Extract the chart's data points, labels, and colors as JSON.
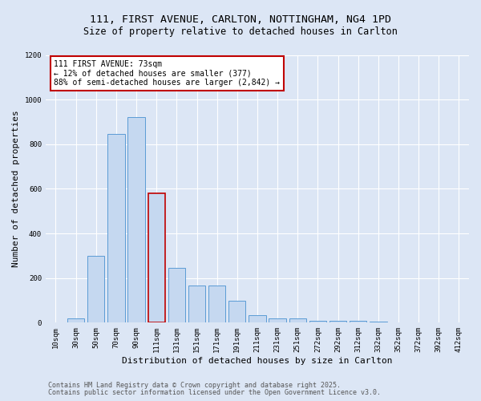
{
  "title_line1": "111, FIRST AVENUE, CARLTON, NOTTINGHAM, NG4 1PD",
  "title_line2": "Size of property relative to detached houses in Carlton",
  "xlabel": "Distribution of detached houses by size in Carlton",
  "ylabel": "Number of detached properties",
  "categories": [
    "10sqm",
    "30sqm",
    "50sqm",
    "70sqm",
    "90sqm",
    "111sqm",
    "131sqm",
    "151sqm",
    "171sqm",
    "191sqm",
    "211sqm",
    "231sqm",
    "251sqm",
    "272sqm",
    "292sqm",
    "312sqm",
    "332sqm",
    "352sqm",
    "372sqm",
    "392sqm",
    "412sqm"
  ],
  "values": [
    0,
    20,
    300,
    845,
    920,
    580,
    245,
    165,
    165,
    100,
    35,
    20,
    20,
    10,
    8,
    8,
    5,
    2,
    1,
    1,
    0
  ],
  "bar_color": "#c5d8f0",
  "bar_edge_color": "#5b9bd5",
  "highlight_bar_index": 5,
  "highlight_bar_color": "#c5d8f0",
  "highlight_bar_edge_color": "#c00000",
  "ylim": [
    0,
    1200
  ],
  "yticks": [
    0,
    200,
    400,
    600,
    800,
    1000,
    1200
  ],
  "annotation_title": "111 FIRST AVENUE: 73sqm",
  "annotation_line1": "← 12% of detached houses are smaller (377)",
  "annotation_line2": "88% of semi-detached houses are larger (2,842) →",
  "annotation_box_color": "#ffffff",
  "annotation_box_edge_color": "#c00000",
  "footer_line1": "Contains HM Land Registry data © Crown copyright and database right 2025.",
  "footer_line2": "Contains public sector information licensed under the Open Government Licence v3.0.",
  "bg_color": "#dce6f5",
  "plot_bg_color": "#dce6f5",
  "grid_color": "#ffffff",
  "title_fontsize": 9.5,
  "subtitle_fontsize": 8.5,
  "axis_label_fontsize": 8,
  "tick_fontsize": 6.5,
  "footer_fontsize": 6
}
